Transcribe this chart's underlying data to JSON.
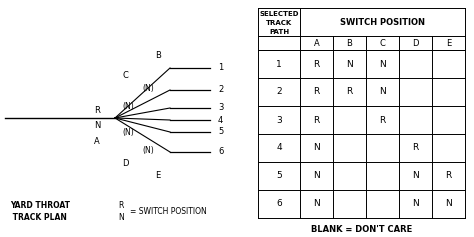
{
  "bg_color": "#ffffff",
  "diagram": {
    "yard_label1": "YARD THROAT",
    "yard_label2": " TRACK PLAN",
    "legend_R": "R",
    "legend_N": "N",
    "legend_text": "= SWITCH POSITION"
  },
  "table": {
    "col_header_top1": "SELECTED",
    "col_header_top2": "TRACK",
    "col_header_top3": "PATH",
    "col_header_sw": "SWITCH POSITION",
    "col_labels": [
      "A",
      "B",
      "C",
      "D",
      "E"
    ],
    "row_labels": [
      "1",
      "2",
      "3",
      "4",
      "5",
      "6"
    ],
    "cells": [
      [
        "R",
        "N",
        "N",
        "",
        ""
      ],
      [
        "R",
        "R",
        "N",
        "",
        ""
      ],
      [
        "R",
        "",
        "R",
        "",
        ""
      ],
      [
        "N",
        "",
        "",
        "R",
        ""
      ],
      [
        "N",
        "",
        "",
        "N",
        "R"
      ],
      [
        "N",
        "",
        "",
        "N",
        "N"
      ]
    ],
    "footer": "BLANK = DON'T CARE"
  }
}
